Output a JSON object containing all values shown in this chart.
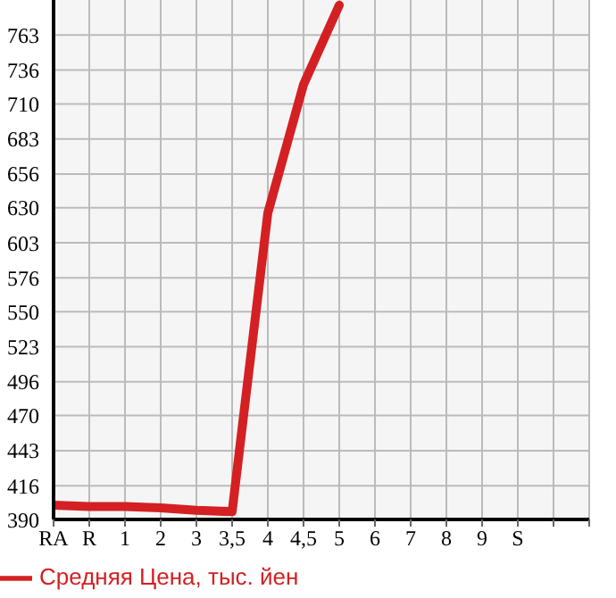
{
  "chart_data": {
    "type": "line",
    "categories": [
      "RA",
      "R",
      "1",
      "2",
      "3",
      "3,5",
      "4",
      "4,5",
      "5",
      "6",
      "7",
      "8",
      "9",
      "S",
      null,
      null
    ],
    "series": [
      {
        "name": "Средняя Цена, тыс. йен",
        "color": "#d42022",
        "values": [
          401,
          400,
          400,
          399,
          397,
          396,
          626,
          725,
          786,
          null,
          null,
          null,
          null,
          null,
          null,
          null
        ]
      }
    ],
    "ylim": [
      390,
      790
    ],
    "yticks": [
      390,
      416,
      443,
      470,
      496,
      523,
      550,
      576,
      603,
      630,
      656,
      683,
      710,
      736,
      763
    ],
    "grid": true,
    "legend": "bottom left",
    "marker": "none",
    "line_style": "solid"
  }
}
